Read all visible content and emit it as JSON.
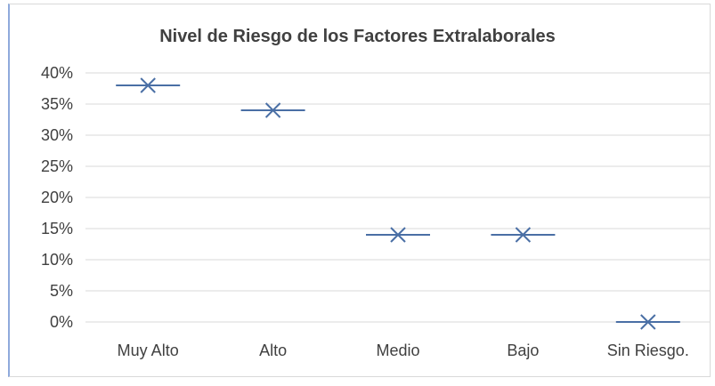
{
  "chart_data": {
    "type": "scatter",
    "title": "Nivel de Riesgo de los Factores Extralaborales",
    "categories": [
      "Muy Alto",
      "Alto",
      "Medio",
      "Bajo",
      "Sin Riesgo."
    ],
    "values": [
      38,
      34,
      14,
      14,
      0
    ],
    "ylim": [
      0,
      40
    ],
    "yticks": [
      "0%",
      "5%",
      "10%",
      "15%",
      "20%",
      "25%",
      "30%",
      "35%",
      "40%"
    ],
    "grid": true,
    "legend": "none",
    "colors": {
      "marker": "#4a6fa5",
      "grid": "#d9d9d9",
      "text": "#404040"
    }
  }
}
